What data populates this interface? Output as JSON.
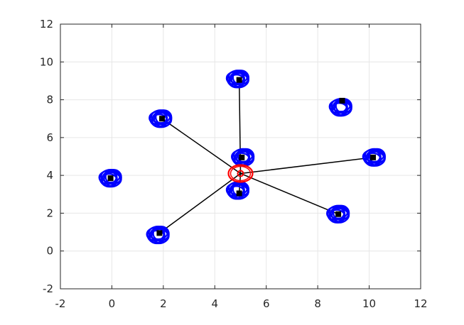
{
  "chart_data": {
    "type": "scatter",
    "title": "",
    "xlabel": "",
    "ylabel": "",
    "xlim": [
      -2,
      12
    ],
    "ylim": [
      -2,
      12
    ],
    "xticks": [
      -2,
      0,
      2,
      4,
      6,
      8,
      10,
      12
    ],
    "yticks": [
      -2,
      0,
      2,
      4,
      6,
      8,
      10,
      12
    ],
    "grid": true,
    "center": {
      "x": 5.0,
      "y": 4.1
    },
    "series": [
      {
        "role": "point-clouds",
        "color": "#0000ff",
        "points": [
          {
            "x": -0.05,
            "y": 3.85
          },
          {
            "x": 1.9,
            "y": 7.0
          },
          {
            "x": 1.8,
            "y": 0.85
          },
          {
            "x": 4.9,
            "y": 9.1
          },
          {
            "x": 5.1,
            "y": 4.95
          },
          {
            "x": 4.9,
            "y": 3.2
          },
          {
            "x": 8.9,
            "y": 7.6
          },
          {
            "x": 10.2,
            "y": 4.95
          },
          {
            "x": 8.8,
            "y": 1.95
          }
        ]
      },
      {
        "role": "markers",
        "color": "#000000",
        "points": [
          {
            "x": -0.05,
            "y": 3.85
          },
          {
            "x": 1.95,
            "y": 7.0
          },
          {
            "x": 1.85,
            "y": 0.95
          },
          {
            "x": 4.95,
            "y": 9.05
          },
          {
            "x": 5.05,
            "y": 4.95
          },
          {
            "x": 4.95,
            "y": 3.05
          },
          {
            "x": 8.95,
            "y": 7.95
          },
          {
            "x": 10.15,
            "y": 4.95
          },
          {
            "x": 8.8,
            "y": 1.95
          }
        ]
      },
      {
        "role": "connections",
        "color": "#000000",
        "from_center_to": [
          {
            "x": 1.95,
            "y": 7.0
          },
          {
            "x": 1.85,
            "y": 0.95
          },
          {
            "x": 4.95,
            "y": 9.05
          },
          {
            "x": 4.95,
            "y": 3.05
          },
          {
            "x": 10.15,
            "y": 4.95
          },
          {
            "x": 8.8,
            "y": 1.95
          }
        ]
      },
      {
        "role": "target",
        "color": "#ff0000",
        "points": [
          {
            "x": 5.0,
            "y": 4.1
          }
        ]
      }
    ]
  }
}
